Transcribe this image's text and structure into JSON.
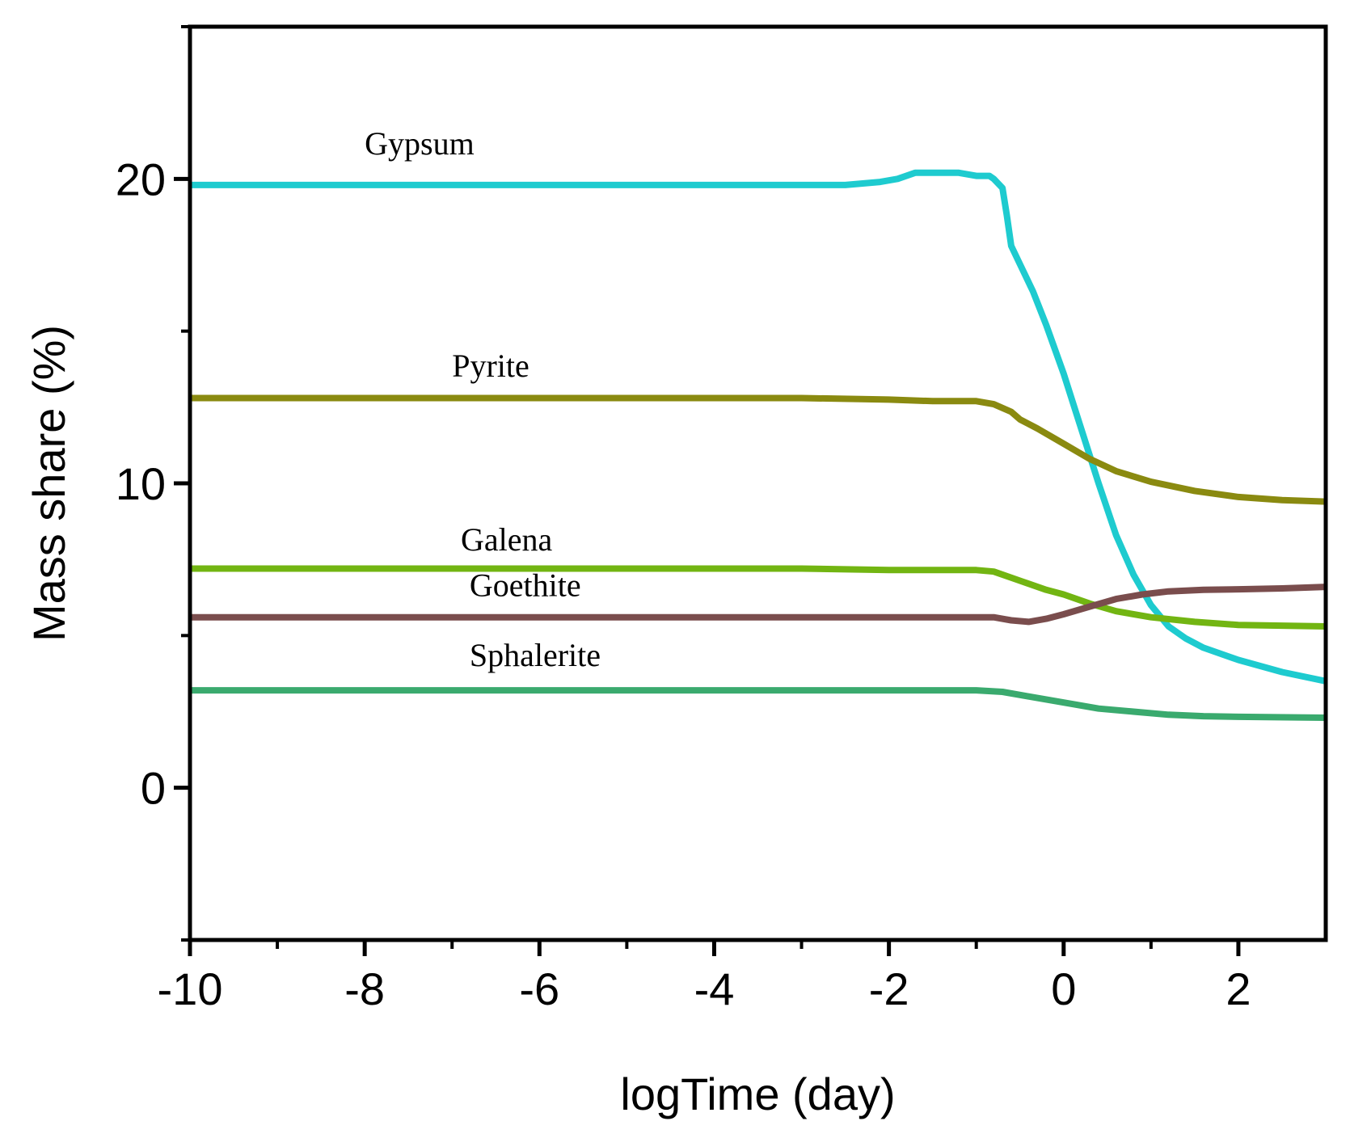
{
  "chart_data": {
    "type": "line",
    "title": "",
    "xlabel": "logTime (day)",
    "ylabel": "Mass share (%)",
    "xlim": [
      -10,
      3
    ],
    "ylim": [
      -5,
      25
    ],
    "xticks": [
      -10,
      -8,
      -6,
      -4,
      -2,
      0,
      2
    ],
    "xtick_labels": [
      "-10",
      "-8",
      "-6",
      "-4",
      "-2",
      "0",
      "2"
    ],
    "yticks": [
      0,
      10,
      20
    ],
    "ytick_labels": [
      "0",
      "10",
      "20"
    ],
    "grid": false,
    "legend": "inline labels",
    "series": [
      {
        "name": "Gypsum",
        "color": "#1ecbcf",
        "points": [
          [
            -10,
            19.8
          ],
          [
            -3,
            19.8
          ],
          [
            -2.5,
            19.8
          ],
          [
            -2.1,
            19.9
          ],
          [
            -1.9,
            20.0
          ],
          [
            -1.7,
            20.2
          ],
          [
            -1.5,
            20.2
          ],
          [
            -1.2,
            20.2
          ],
          [
            -1.0,
            20.1
          ],
          [
            -0.85,
            20.1
          ],
          [
            -0.8,
            20.0
          ],
          [
            -0.7,
            19.7
          ],
          [
            -0.65,
            18.8
          ],
          [
            -0.6,
            17.8
          ],
          [
            -0.5,
            17.2
          ],
          [
            -0.35,
            16.3
          ],
          [
            -0.2,
            15.2
          ],
          [
            0,
            13.6
          ],
          [
            0.2,
            11.8
          ],
          [
            0.4,
            10.0
          ],
          [
            0.6,
            8.3
          ],
          [
            0.8,
            7.0
          ],
          [
            1.0,
            6.0
          ],
          [
            1.2,
            5.3
          ],
          [
            1.4,
            4.9
          ],
          [
            1.6,
            4.6
          ],
          [
            2.0,
            4.2
          ],
          [
            2.5,
            3.8
          ],
          [
            3,
            3.5
          ]
        ]
      },
      {
        "name": "Pyrite",
        "color": "#8a8a10",
        "points": [
          [
            -10,
            12.8
          ],
          [
            -3,
            12.8
          ],
          [
            -2,
            12.75
          ],
          [
            -1.5,
            12.7
          ],
          [
            -1.0,
            12.7
          ],
          [
            -0.8,
            12.6
          ],
          [
            -0.6,
            12.35
          ],
          [
            -0.5,
            12.1
          ],
          [
            -0.3,
            11.8
          ],
          [
            0,
            11.3
          ],
          [
            0.3,
            10.8
          ],
          [
            0.6,
            10.4
          ],
          [
            1.0,
            10.05
          ],
          [
            1.5,
            9.75
          ],
          [
            2.0,
            9.55
          ],
          [
            2.5,
            9.45
          ],
          [
            3,
            9.4
          ]
        ]
      },
      {
        "name": "Galena",
        "color": "#72b512",
        "points": [
          [
            -10,
            7.2
          ],
          [
            -3,
            7.2
          ],
          [
            -2,
            7.15
          ],
          [
            -1.0,
            7.15
          ],
          [
            -0.8,
            7.1
          ],
          [
            -0.5,
            6.8
          ],
          [
            -0.2,
            6.5
          ],
          [
            0,
            6.35
          ],
          [
            0.3,
            6.05
          ],
          [
            0.6,
            5.8
          ],
          [
            1.0,
            5.6
          ],
          [
            1.5,
            5.45
          ],
          [
            2.0,
            5.35
          ],
          [
            3,
            5.3
          ]
        ]
      },
      {
        "name": "Goethite",
        "color": "#7a4d4d",
        "points": [
          [
            -10,
            5.6
          ],
          [
            -3,
            5.6
          ],
          [
            -2,
            5.6
          ],
          [
            -1.0,
            5.6
          ],
          [
            -0.8,
            5.6
          ],
          [
            -0.6,
            5.5
          ],
          [
            -0.4,
            5.45
          ],
          [
            -0.2,
            5.55
          ],
          [
            0,
            5.7
          ],
          [
            0.3,
            5.95
          ],
          [
            0.6,
            6.2
          ],
          [
            0.9,
            6.35
          ],
          [
            1.2,
            6.45
          ],
          [
            1.6,
            6.5
          ],
          [
            2.0,
            6.52
          ],
          [
            2.5,
            6.55
          ],
          [
            3,
            6.6
          ]
        ]
      },
      {
        "name": "Sphalerite",
        "color": "#3aaa6e",
        "points": [
          [
            -10,
            3.2
          ],
          [
            -3,
            3.2
          ],
          [
            -2,
            3.2
          ],
          [
            -1.0,
            3.2
          ],
          [
            -0.7,
            3.15
          ],
          [
            -0.4,
            3.0
          ],
          [
            0,
            2.8
          ],
          [
            0.4,
            2.6
          ],
          [
            0.8,
            2.5
          ],
          [
            1.2,
            2.4
          ],
          [
            1.6,
            2.35
          ],
          [
            2.0,
            2.33
          ],
          [
            3,
            2.3
          ]
        ]
      }
    ],
    "annotations": [
      {
        "text": "Gypsum",
        "x": -8.0,
        "y": 20.8
      },
      {
        "text": "Pyrite",
        "x": -7.0,
        "y": 13.5
      },
      {
        "text": "Galena",
        "x": -6.9,
        "y": 7.8
      },
      {
        "text": "Goethite",
        "x": -6.8,
        "y": 6.3
      },
      {
        "text": "Sphalerite",
        "x": -6.8,
        "y": 4.0
      }
    ]
  }
}
